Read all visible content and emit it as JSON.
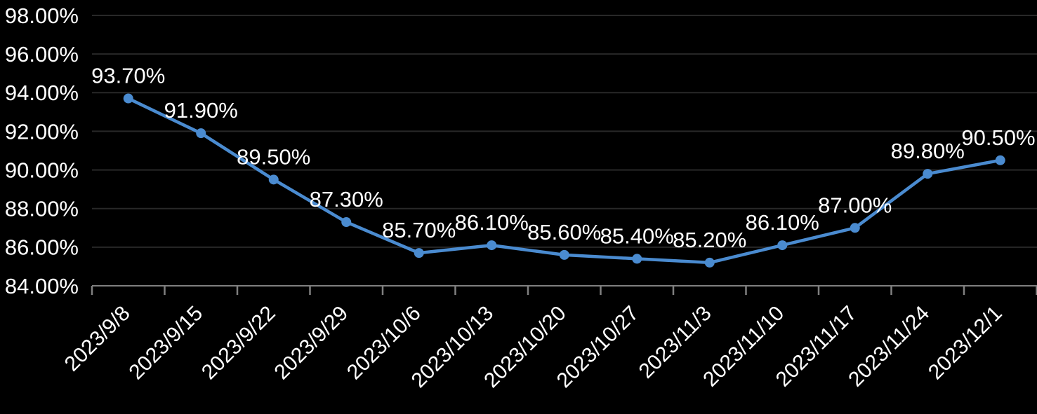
{
  "chart_data": {
    "type": "line",
    "title": "",
    "xlabel": "",
    "ylabel": "",
    "categories": [
      "2023/9/8",
      "2023/9/15",
      "2023/9/22",
      "2023/9/29",
      "2023/10/6",
      "2023/10/13",
      "2023/10/20",
      "2023/10/27",
      "2023/11/3",
      "2023/11/10",
      "2023/11/17",
      "2023/11/24",
      "2023/12/1"
    ],
    "values": [
      93.7,
      91.9,
      89.5,
      87.3,
      85.7,
      86.1,
      85.6,
      85.4,
      85.2,
      86.1,
      87.0,
      89.8,
      90.5
    ],
    "data_labels": [
      "93.70%",
      "91.90%",
      "89.50%",
      "87.30%",
      "85.70%",
      "86.10%",
      "85.60%",
      "85.40%",
      "85.20%",
      "86.10%",
      "87.00%",
      "89.80%",
      "90.50%"
    ],
    "y_tick_labels": [
      "84.00%",
      "86.00%",
      "88.00%",
      "90.00%",
      "92.00%",
      "94.00%",
      "96.00%",
      "98.00%"
    ],
    "ylim": [
      84,
      98
    ],
    "y_tick_step": 2,
    "grid": true,
    "legend": "none",
    "x_label_rotation_deg": 45,
    "colors": {
      "background": "#000000",
      "line": "#4A8BD0",
      "marker": "#4A8BD0",
      "gridline": "#282828",
      "axis": "#7F7F7F",
      "text": "#FFFFFF"
    }
  }
}
